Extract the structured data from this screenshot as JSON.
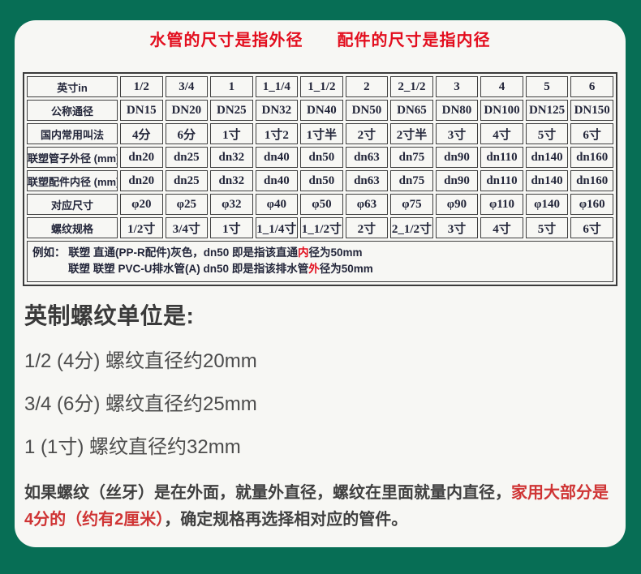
{
  "title": "水管的尺寸是指外径　　配件的尺寸是指内径",
  "colors": {
    "frame_green": "#076e55",
    "card_background": "#f7f7f4",
    "title_red": "#e30e1e",
    "note_red": "#cf3434",
    "table_text": "#23263a"
  },
  "table": {
    "rows": [
      {
        "label": "英寸in",
        "values": [
          "1/2",
          "3/4",
          "1",
          "1_1/4",
          "1_1/2",
          "2",
          "2_1/2",
          "3",
          "4",
          "5",
          "6"
        ]
      },
      {
        "label": "公称通径",
        "values": [
          "DN15",
          "DN20",
          "DN25",
          "DN32",
          "DN40",
          "DN50",
          "DN65",
          "DN80",
          "DN100",
          "DN125",
          "DN150"
        ]
      },
      {
        "label": "国内常用叫法",
        "values": [
          "4分",
          "6分",
          "1寸",
          "1寸2",
          "1寸半",
          "2寸",
          "2寸半",
          "3寸",
          "4寸",
          "5寸",
          "6寸"
        ]
      },
      {
        "label": "联塑管子外径 (mm)",
        "values": [
          "dn20",
          "dn25",
          "dn32",
          "dn40",
          "dn50",
          "dn63",
          "dn75",
          "dn90",
          "dn110",
          "dn140",
          "dn160"
        ]
      },
      {
        "label": "联塑配件内径 (mm)",
        "values": [
          "dn20",
          "dn25",
          "dn32",
          "dn40",
          "dn50",
          "dn63",
          "dn75",
          "dn90",
          "dn110",
          "dn140",
          "dn160"
        ]
      },
      {
        "label": "对应尺寸",
        "values": [
          "φ20",
          "φ25",
          "φ32",
          "φ40",
          "φ50",
          "φ63",
          "φ75",
          "φ90",
          "φ110",
          "φ140",
          "φ160"
        ]
      },
      {
        "label": "螺纹规格",
        "values": [
          "1/2寸",
          "3/4寸",
          "1寸",
          "1_1/4寸",
          "1_1/2寸",
          "2寸",
          "2_1/2寸",
          "3寸",
          "4寸",
          "5寸",
          "6寸"
        ]
      }
    ],
    "example1": {
      "pre": "例如： 联塑 直通(PP-R配件)灰色，dn50  即是指该直通",
      "red": "内",
      "post": "径为50mm"
    },
    "example2": {
      "pre": "联塑 联塑 PVC-U排水管(A) dn50  即是指该排水管",
      "red": "外",
      "post": "径为50mm"
    }
  },
  "thread_section": {
    "heading": "英制螺纹单位是:",
    "lines": [
      "1/2 (4分) 螺纹直径约20mm",
      "3/4 (6分) 螺纹直径约25mm",
      "1 (1寸) 螺纹直径约32mm"
    ]
  },
  "note": {
    "part1": "如果螺纹（丝牙）是在外面，就量外直径，螺纹在里面就量内直径，",
    "red": "家用大部分是 4分的（约有2厘米）",
    "part2": "，确定规格再选择相对应的管件。"
  }
}
